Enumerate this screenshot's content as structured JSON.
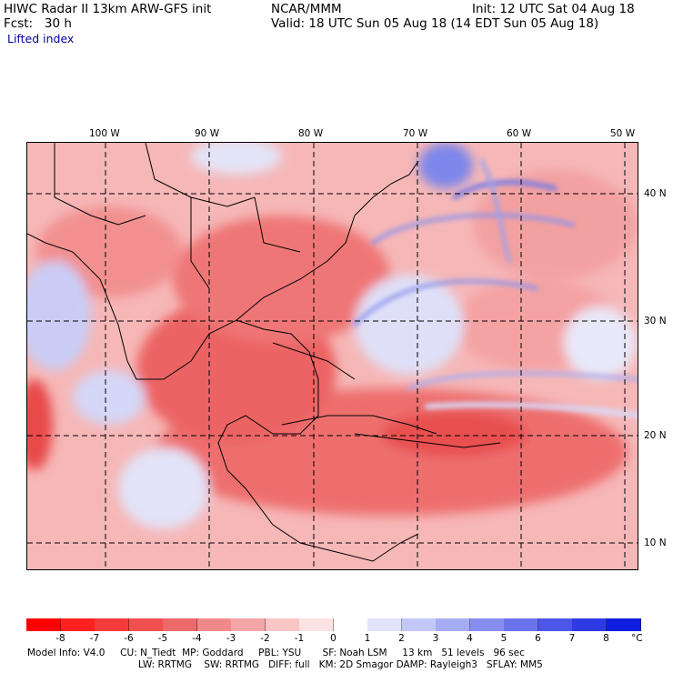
{
  "header": {
    "model_line": "HIWC Radar II 13km ARW-GFS init",
    "org": "NCAR/MMM",
    "init": "Init: 12 UTC Sat 04 Aug 18",
    "fcst": "Fcst:   30 h",
    "valid": "Valid: 18 UTC Sun 05 Aug 18 (14 EDT Sun 05 Aug 18)",
    "field": "Lifted index"
  },
  "map": {
    "lon_labels": [
      "100 W",
      "90 W",
      "80 W",
      "70 W",
      "60 W",
      "50 W"
    ],
    "lat_labels": [
      "40 N",
      "30 N",
      "20 N",
      "10 N"
    ],
    "colors": {
      "water_low_li": "#f7b3b3",
      "land_unstable": "#ef6b6b",
      "stable_blue": "#c6cdf7",
      "grid": "#000000"
    }
  },
  "colorbar": {
    "ticks": [
      "-8",
      "-7",
      "-6",
      "-5",
      "-4",
      "-3",
      "-2",
      "-1",
      "0",
      "1",
      "2",
      "3",
      "4",
      "5",
      "6",
      "7",
      "8"
    ],
    "unit": "°C",
    "colors": [
      "#ff0000",
      "#ff2020",
      "#f53a3a",
      "#f05050",
      "#ec6a6a",
      "#f08a8a",
      "#f5a6a6",
      "#f8c4c4",
      "#fce2e2",
      "#ffffff",
      "#e2e4fc",
      "#c4c8f8",
      "#a6acf4",
      "#888ef0",
      "#6a72ec",
      "#4c56e8",
      "#2e3ae4",
      "#101ee0"
    ]
  },
  "footer": {
    "line1": "Model Info: V4.0     CU: N_Tiedt  MP: Goddard     PBL: YSU       SF: Noah LSM     13 km   51 levels   96 sec",
    "line2": "LW: RRTMG    SW: RRTMG   DIFF: full   KM: 2D Smagor DAMP: Rayleigh3   SFLAY: MM5"
  }
}
